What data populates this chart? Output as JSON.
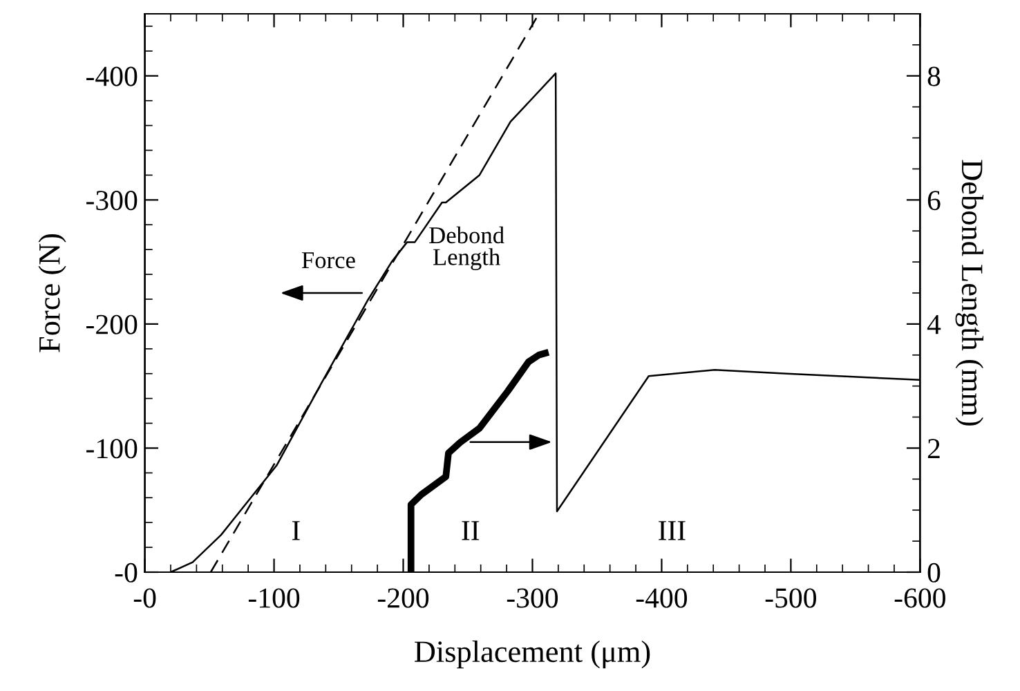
{
  "chart_data": {
    "type": "line",
    "xlabel": "Displacement (μm)",
    "ylabel": "Force (N)",
    "y2label": "Debond Length (mm)",
    "xlim": [
      0,
      -600
    ],
    "ylim": [
      0,
      -450
    ],
    "y2lim": [
      0,
      9
    ],
    "xticks": [
      {
        "value": 0,
        "label": "-0"
      },
      -100,
      -200,
      -300,
      -400,
      -500,
      -600,
      {
        "value": -20,
        "label": null
      },
      {
        "value": -40,
        "label": null
      },
      {
        "value": -60,
        "label": null
      },
      {
        "value": -80,
        "label": null
      },
      {
        "value": -120,
        "label": null
      },
      {
        "value": -140,
        "label": null
      },
      {
        "value": -160,
        "label": null
      },
      {
        "value": -180,
        "label": null
      },
      {
        "value": -220,
        "label": null
      },
      {
        "value": -240,
        "label": null
      },
      {
        "value": -260,
        "label": null
      },
      {
        "value": -280,
        "label": null
      },
      {
        "value": -320,
        "label": null
      },
      {
        "value": -340,
        "label": null
      },
      {
        "value": -360,
        "label": null
      },
      {
        "value": -380,
        "label": null
      },
      {
        "value": -420,
        "label": null
      },
      {
        "value": -440,
        "label": null
      },
      {
        "value": -460,
        "label": null
      },
      {
        "value": -480,
        "label": null
      },
      {
        "value": -520,
        "label": null
      },
      {
        "value": -540,
        "label": null
      },
      {
        "value": -560,
        "label": null
      },
      {
        "value": -580,
        "label": null
      }
    ],
    "yticks": [
      {
        "value": 0,
        "label": "-0"
      },
      -100,
      -200,
      -300,
      -400,
      {
        "value": -20,
        "label": null
      },
      {
        "value": -40,
        "label": null
      },
      {
        "value": -60,
        "label": null
      },
      {
        "value": -80,
        "label": null
      },
      {
        "value": -120,
        "label": null
      },
      {
        "value": -140,
        "label": null
      },
      {
        "value": -160,
        "label": null
      },
      {
        "value": -180,
        "label": null
      },
      {
        "value": -220,
        "label": null
      },
      {
        "value": -240,
        "label": null
      },
      {
        "value": -260,
        "label": null
      },
      {
        "value": -280,
        "label": null
      },
      {
        "value": -320,
        "label": null
      },
      {
        "value": -340,
        "label": null
      },
      {
        "value": -360,
        "label": null
      },
      {
        "value": -380,
        "label": null
      },
      {
        "value": -420,
        "label": null
      },
      {
        "value": -440,
        "label": null
      }
    ],
    "y2ticks": [
      0,
      2,
      4,
      6,
      8,
      {
        "value": 0.5,
        "label": null
      },
      {
        "value": 1,
        "label": null
      },
      {
        "value": 1.5,
        "label": null
      },
      {
        "value": 2.5,
        "label": null
      },
      {
        "value": 3,
        "label": null
      },
      {
        "value": 3.5,
        "label": null
      },
      {
        "value": 4.5,
        "label": null
      },
      {
        "value": 5,
        "label": null
      },
      {
        "value": 5.5,
        "label": null
      },
      {
        "value": 6.5,
        "label": null
      },
      {
        "value": 7,
        "label": null
      },
      {
        "value": 7.5,
        "label": null
      },
      {
        "value": 8.5,
        "label": null
      }
    ],
    "grid": false,
    "legend": false,
    "marker": "none",
    "series": [
      {
        "color": "#000000",
        "line_style": "solid",
        "x": [
          -20,
          -37,
          -59,
          -102,
          -137,
          -173,
          -191,
          -203,
          -209,
          -230,
          -233,
          -259,
          -283,
          -318,
          -319,
          -390,
          -441,
          -497,
          -599
        ],
        "values": [
          0,
          -8,
          -30,
          -86,
          -153,
          -220,
          -250,
          -266,
          -266,
          -298,
          -298,
          -320,
          -363,
          -402,
          -49,
          -158,
          -163,
          -160,
          -155
        ]
      },
      {
        "color": "#000000",
        "line_style": "dashed",
        "x": [
          -51,
          -305
        ],
        "values": [
          0,
          -450
        ]
      },
      {
        "color": "#000000",
        "line_style": "solid",
        "axis": "y2",
        "x": [
          -206,
          -206,
          -214,
          -233,
          -235,
          -244,
          -259,
          -281,
          -297,
          -305,
          -310
        ],
        "values": [
          0,
          1.09,
          1.25,
          1.54,
          1.92,
          2.09,
          2.32,
          2.92,
          3.39,
          3.5,
          3.53
        ]
      }
    ],
    "annotations": [
      "Force",
      "Debond\nLength",
      "I",
      "II",
      "III"
    ]
  }
}
